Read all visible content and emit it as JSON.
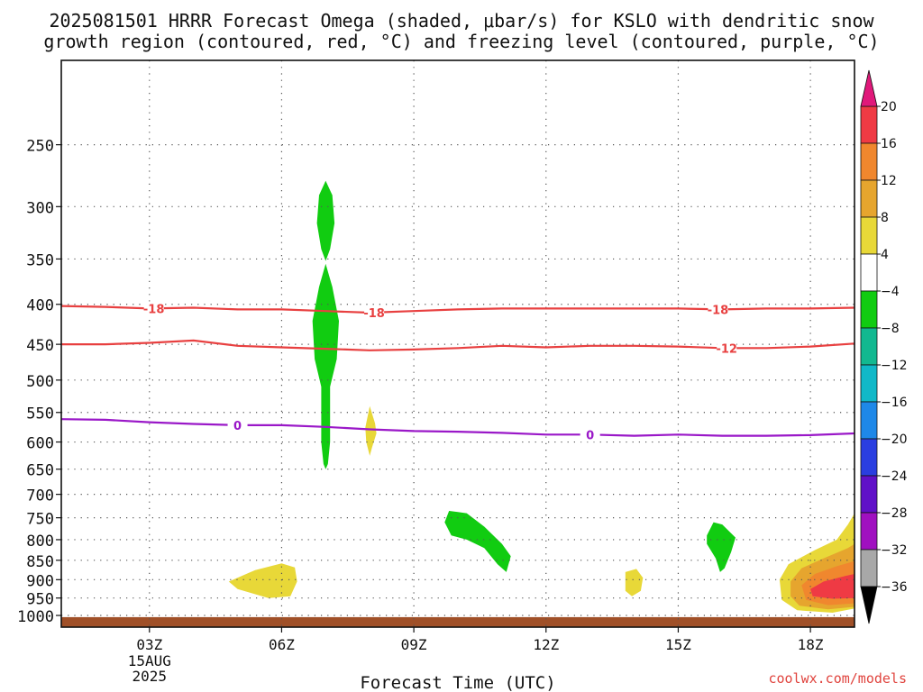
{
  "title_line1": "2025081501 HRRR Forecast Omega (shaded, μbar/s) for KSLO with dendritic snow",
  "title_line2": "growth region (contoured, red, °C) and freezing level (contoured, purple, °C)",
  "credit": "coolwx.com/models",
  "chart_data": {
    "type": "contour",
    "xlabel": "Forecast Time (UTC)",
    "ylabel": "",
    "x_range_hours_utc": [
      1,
      19
    ],
    "x_ticks": [
      {
        "hour": 3,
        "label": "03Z",
        "sublabels": [
          "15AUG",
          "2025"
        ]
      },
      {
        "hour": 6,
        "label": "06Z"
      },
      {
        "hour": 9,
        "label": "09Z"
      },
      {
        "hour": 12,
        "label": "12Z"
      },
      {
        "hour": 15,
        "label": "15Z"
      },
      {
        "hour": 18,
        "label": "18Z"
      }
    ],
    "y_scale": "log-pressure (inverted)",
    "y_range_hpa": [
      1035,
      195
    ],
    "y_ticks": [
      250,
      300,
      350,
      400,
      450,
      500,
      550,
      600,
      650,
      700,
      750,
      800,
      850,
      900,
      950,
      1000
    ],
    "grid": true,
    "colorbar": {
      "units": "μbar/s",
      "labels": [
        "20",
        "16",
        "12",
        "8",
        "4",
        "−4",
        "−8",
        "−12",
        "−16",
        "−20",
        "−24",
        "−28",
        "−32",
        "−36"
      ],
      "bands": [
        {
          "from": 16,
          "to": 20,
          "color": "#ef3a44"
        },
        {
          "from": 12,
          "to": 16,
          "color": "#f0872e"
        },
        {
          "from": 8,
          "to": 12,
          "color": "#e6a52e"
        },
        {
          "from": 4,
          "to": 8,
          "color": "#e8d838"
        },
        {
          "from": -4,
          "to": 4,
          "color": "#ffffff"
        },
        {
          "from": -8,
          "to": -4,
          "color": "#11cc11"
        },
        {
          "from": -12,
          "to": -8,
          "color": "#12b890"
        },
        {
          "from": -16,
          "to": -12,
          "color": "#10b8c8"
        },
        {
          "from": -20,
          "to": -16,
          "color": "#1e88e8"
        },
        {
          "from": -24,
          "to": -20,
          "color": "#2a3ee0"
        },
        {
          "from": -28,
          "to": -24,
          "color": "#6010c8"
        },
        {
          "from": -32,
          "to": -28,
          "color": "#a010c0"
        },
        {
          "from": -36,
          "to": -32,
          "color": "#a8a8a8"
        }
      ],
      "over_color": "#e0187a",
      "under_color": "#000000"
    },
    "contours": [
      {
        "label": "-18",
        "color": "#e84040",
        "points": [
          [
            1.0,
            402
          ],
          [
            2.0,
            403
          ],
          [
            3.0,
            405
          ],
          [
            4.0,
            404
          ],
          [
            5.0,
            406
          ],
          [
            6.0,
            406
          ],
          [
            7.0,
            408
          ],
          [
            8.0,
            410
          ],
          [
            9.0,
            408
          ],
          [
            10.0,
            406
          ],
          [
            11.0,
            405
          ],
          [
            12.0,
            405
          ],
          [
            13.0,
            405
          ],
          [
            14.0,
            405
          ],
          [
            15.0,
            405
          ],
          [
            16.0,
            406
          ],
          [
            17.0,
            405
          ],
          [
            18.0,
            405
          ],
          [
            19.0,
            404
          ]
        ],
        "label_at": [
          [
            3.1,
            405
          ],
          [
            8.1,
            410
          ],
          [
            15.9,
            406
          ]
        ]
      },
      {
        "label": "-12",
        "color": "#e84040",
        "points": [
          [
            1.0,
            450
          ],
          [
            2.0,
            450
          ],
          [
            3.0,
            448
          ],
          [
            4.0,
            445
          ],
          [
            5.0,
            452
          ],
          [
            6.0,
            454
          ],
          [
            7.0,
            456
          ],
          [
            8.0,
            458
          ],
          [
            9.0,
            457
          ],
          [
            10.0,
            455
          ],
          [
            11.0,
            452
          ],
          [
            12.0,
            454
          ],
          [
            13.0,
            452
          ],
          [
            14.0,
            452
          ],
          [
            15.0,
            453
          ],
          [
            16.0,
            455
          ],
          [
            17.0,
            455
          ],
          [
            18.0,
            453
          ],
          [
            19.0,
            449
          ]
        ],
        "label_at": [
          [
            16.1,
            455
          ]
        ]
      },
      {
        "label": "0",
        "color": "#9a18c8",
        "points": [
          [
            1.0,
            561
          ],
          [
            2.0,
            562
          ],
          [
            3.0,
            566
          ],
          [
            4.0,
            569
          ],
          [
            5.0,
            571
          ],
          [
            6.0,
            571
          ],
          [
            7.0,
            574
          ],
          [
            8.0,
            578
          ],
          [
            9.0,
            581
          ],
          [
            10.0,
            582
          ],
          [
            11.0,
            584
          ],
          [
            12.0,
            587
          ],
          [
            13.0,
            587
          ],
          [
            14.0,
            589
          ],
          [
            15.0,
            587
          ],
          [
            16.0,
            589
          ],
          [
            17.0,
            589
          ],
          [
            18.0,
            588
          ],
          [
            19.0,
            585
          ]
        ],
        "label_at": [
          [
            5.0,
            571
          ],
          [
            13.0,
            587
          ]
        ]
      }
    ],
    "shaded_regions": [
      {
        "name": "upward-motion-upper",
        "value_range": [
          -8,
          -4
        ],
        "color": "#11cc11",
        "points": [
          [
            7.0,
            278
          ],
          [
            7.15,
            290
          ],
          [
            7.2,
            315
          ],
          [
            7.1,
            340
          ],
          [
            7.0,
            352
          ],
          [
            6.9,
            340
          ],
          [
            6.8,
            315
          ],
          [
            6.85,
            290
          ]
        ]
      },
      {
        "name": "upward-motion-column",
        "value_range": [
          -8,
          -4
        ],
        "color": "#11cc11",
        "points": [
          [
            7.0,
            355
          ],
          [
            7.15,
            380
          ],
          [
            7.3,
            420
          ],
          [
            7.25,
            470
          ],
          [
            7.1,
            510
          ],
          [
            7.1,
            600
          ],
          [
            7.05,
            640
          ],
          [
            7.0,
            650
          ],
          [
            6.95,
            640
          ],
          [
            6.9,
            600
          ],
          [
            6.9,
            510
          ],
          [
            6.75,
            470
          ],
          [
            6.7,
            420
          ],
          [
            6.85,
            380
          ]
        ]
      },
      {
        "name": "subsidence-mid",
        "value_range": [
          4,
          8
        ],
        "color": "#e8d838",
        "points": [
          [
            8.0,
            540
          ],
          [
            8.12,
            568
          ],
          [
            8.15,
            585
          ],
          [
            8.05,
            610
          ],
          [
            8.0,
            625
          ],
          [
            7.92,
            600
          ],
          [
            7.9,
            575
          ]
        ]
      },
      {
        "name": "upward-motion-lower-1",
        "value_range": [
          -8,
          -4
        ],
        "color": "#11cc11",
        "points": [
          [
            9.8,
            735
          ],
          [
            10.2,
            740
          ],
          [
            10.6,
            770
          ],
          [
            11.0,
            810
          ],
          [
            11.2,
            840
          ],
          [
            11.1,
            880
          ],
          [
            10.9,
            860
          ],
          [
            10.6,
            820
          ],
          [
            10.2,
            800
          ],
          [
            9.85,
            790
          ],
          [
            9.7,
            760
          ]
        ]
      },
      {
        "name": "upward-motion-lower-2",
        "value_range": [
          -8,
          -4
        ],
        "color": "#11cc11",
        "points": [
          [
            15.8,
            760
          ],
          [
            16.0,
            765
          ],
          [
            16.3,
            795
          ],
          [
            16.2,
            830
          ],
          [
            16.05,
            870
          ],
          [
            15.95,
            880
          ],
          [
            15.85,
            845
          ],
          [
            15.65,
            810
          ],
          [
            15.65,
            790
          ]
        ]
      },
      {
        "name": "subsidence-low-1",
        "value_range": [
          4,
          8
        ],
        "color": "#e8d838",
        "points": [
          [
            4.8,
            905
          ],
          [
            5.4,
            875
          ],
          [
            6.0,
            858
          ],
          [
            6.3,
            868
          ],
          [
            6.35,
            905
          ],
          [
            6.2,
            945
          ],
          [
            5.7,
            950
          ],
          [
            5.0,
            925
          ]
        ]
      },
      {
        "name": "subsidence-low-2",
        "value_range": [
          4,
          8
        ],
        "color": "#e8d838",
        "points": [
          [
            13.8,
            880
          ],
          [
            14.05,
            872
          ],
          [
            14.2,
            895
          ],
          [
            14.15,
            930
          ],
          [
            13.95,
            945
          ],
          [
            13.8,
            930
          ]
        ]
      },
      {
        "name": "subsidence-low-3-outer",
        "value_range": [
          4,
          8
        ],
        "color": "#e8d838",
        "points": [
          [
            17.3,
            900
          ],
          [
            17.5,
            860
          ],
          [
            18.1,
            825
          ],
          [
            18.6,
            800
          ],
          [
            18.85,
            765
          ],
          [
            19.0,
            740
          ],
          [
            19.0,
            980
          ],
          [
            18.5,
            992
          ],
          [
            17.7,
            985
          ],
          [
            17.35,
            955
          ]
        ]
      },
      {
        "name": "subsidence-low-3-ring8",
        "value_range": [
          8,
          12
        ],
        "color": "#e6a52e",
        "points": [
          [
            17.55,
            905
          ],
          [
            17.8,
            870
          ],
          [
            18.3,
            845
          ],
          [
            18.85,
            820
          ],
          [
            19.0,
            810
          ],
          [
            19.0,
            975
          ],
          [
            18.4,
            982
          ],
          [
            17.75,
            972
          ],
          [
            17.55,
            945
          ]
        ]
      },
      {
        "name": "subsidence-low-3-ring12",
        "value_range": [
          12,
          16
        ],
        "color": "#f0872e",
        "points": [
          [
            17.8,
            915
          ],
          [
            18.1,
            885
          ],
          [
            18.6,
            865
          ],
          [
            19.0,
            852
          ],
          [
            19.0,
            965
          ],
          [
            18.4,
            970
          ],
          [
            17.9,
            955
          ]
        ]
      },
      {
        "name": "subsidence-low-3-core",
        "value_range": [
          16,
          20
        ],
        "color": "#ef3a44",
        "points": [
          [
            18.0,
            925
          ],
          [
            18.3,
            905
          ],
          [
            18.8,
            890
          ],
          [
            19.0,
            885
          ],
          [
            19.0,
            950
          ],
          [
            18.5,
            952
          ],
          [
            18.05,
            945
          ]
        ]
      }
    ],
    "terrain": {
      "color": "#a05028",
      "surface_pressure_hpa": 1005
    }
  }
}
